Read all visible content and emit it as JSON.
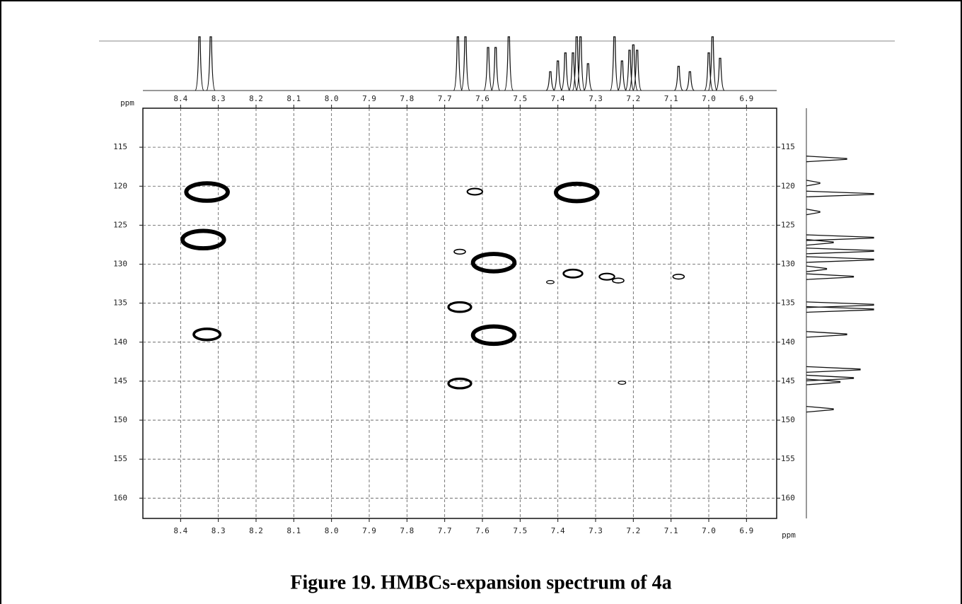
{
  "chart_data": {
    "type": "contour",
    "caption": "Figure 19. HMBCs-expansion spectrum of 4a",
    "x_label": "ppm",
    "y_label": "ppm",
    "xlim": [
      8.5,
      6.82
    ],
    "xticks": [
      8.4,
      8.3,
      8.2,
      8.1,
      {
        "value": 8,
        "label": "8.0"
      },
      7.9,
      7.8,
      7.7,
      7.6,
      7.5,
      7.4,
      7.3,
      7.2,
      7.1,
      {
        "value": 7,
        "label": "7.0"
      },
      6.9
    ],
    "ylim": [
      110,
      162.6
    ],
    "yticks": [
      115,
      120,
      125,
      130,
      135,
      140,
      145,
      150,
      155,
      160
    ],
    "grid": true,
    "color": "#000000",
    "peaks": {
      "x": [
        8.33,
        8.34,
        8.33,
        7.62,
        7.66,
        7.57,
        7.66,
        7.57,
        7.66,
        7.35,
        7.36,
        7.42,
        7.27,
        7.24,
        7.08,
        7.23
      ],
      "y": [
        120.75,
        126.85,
        139.0,
        120.7,
        128.4,
        129.8,
        135.5,
        139.1,
        145.3,
        120.8,
        131.2,
        132.3,
        131.6,
        132.1,
        131.6,
        145.2
      ],
      "sizes": [
        0.11,
        0.11,
        0.07,
        0.04,
        0.03,
        0.11,
        0.06,
        0.11,
        0.06,
        0.11,
        0.05,
        0.02,
        0.04,
        0.03,
        0.03,
        0.02
      ]
    },
    "top_trace": {
      "x": [
        8.35,
        8.32,
        7.665,
        7.645,
        7.585,
        7.565,
        7.53,
        7.42,
        7.4,
        7.38,
        7.36,
        7.35,
        7.34,
        7.32,
        7.25,
        7.23,
        7.21,
        7.2,
        7.19,
        7.08,
        7.05,
        7.0,
        6.99,
        6.97
      ],
      "values": [
        100,
        100,
        100,
        100,
        80,
        80,
        100,
        35,
        55,
        70,
        70,
        100,
        100,
        50,
        100,
        55,
        75,
        85,
        75,
        45,
        35,
        70,
        100,
        60
      ]
    },
    "right_trace": {
      "y": [
        116.5,
        119.6,
        121,
        123.3,
        126.6,
        127.2,
        128.3,
        129.4,
        130.6,
        131.6,
        135.2,
        135.8,
        139.0,
        143.5,
        144.6,
        145.1,
        148.6
      ],
      "values": [
        60,
        20,
        100,
        20,
        100,
        40,
        100,
        100,
        30,
        70,
        100,
        100,
        60,
        80,
        70,
        50,
        40
      ]
    }
  }
}
